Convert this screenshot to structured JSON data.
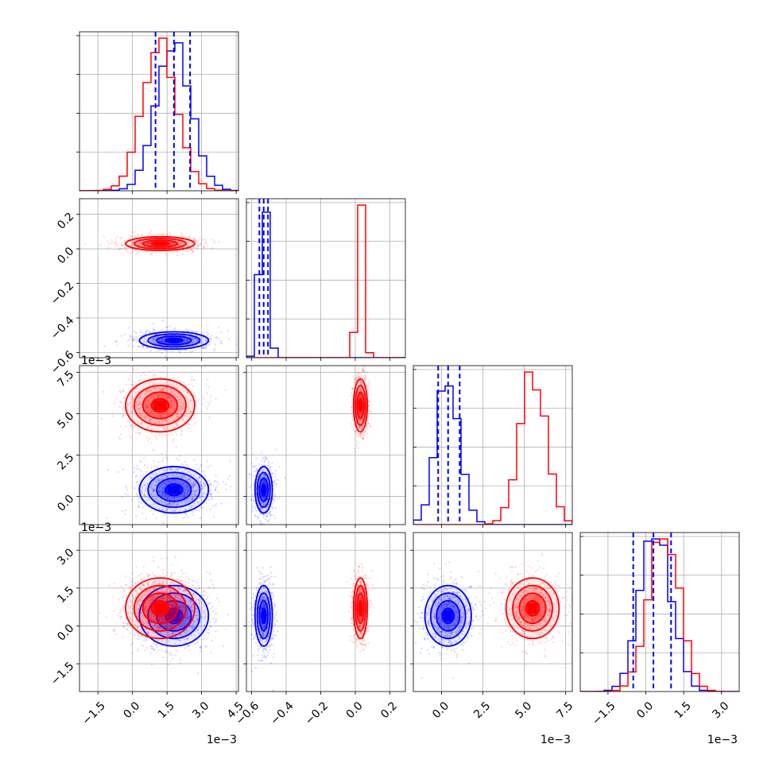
{
  "chart_data": {
    "type": "corner",
    "colors": {
      "series_a": "#0000ff",
      "series_b": "#ff0000"
    },
    "series": [
      {
        "color": "#0000ff",
        "means": [
          0.0018,
          -0.53,
          0.0004,
          0.0004
        ],
        "sds": [
          0.00075,
          0.025,
          0.0007,
          0.0006
        ],
        "quantiles": [
          [
            0.001,
            0.0018,
            0.0025
          ],
          [
            -0.555,
            -0.53,
            -0.505
          ],
          [
            -0.0002,
            0.0004,
            0.0011
          ],
          [
            -0.0005,
            0.0003,
            0.001
          ]
        ]
      },
      {
        "color": "#ff0000",
        "means": [
          0.0012,
          0.03,
          0.0055,
          0.0007
        ],
        "sds": [
          0.00075,
          0.02,
          0.0008,
          0.0006
        ]
      }
    ],
    "params": [
      {
        "range": [
          -0.0023,
          0.0046
        ],
        "ticks": [
          -0.0015,
          0.0,
          0.0015,
          0.003,
          0.0045
        ],
        "tick_labels": [
          "−1.5",
          "0.0",
          "1.5",
          "3.0",
          "4.5"
        ],
        "offset_label": "1e−3"
      },
      {
        "range": [
          -0.63,
          0.29
        ],
        "ticks": [
          -0.6,
          -0.4,
          -0.2,
          0.0,
          0.2
        ],
        "tick_labels": [
          "−0.6",
          "−0.4",
          "−0.2",
          "0.0",
          "0.2"
        ],
        "offset_label": ""
      },
      {
        "range": [
          -0.0017,
          0.0079
        ],
        "ticks": [
          0.0,
          0.0025,
          0.005,
          0.0075
        ],
        "tick_labels": [
          "0.0",
          "2.5",
          "5.0",
          "7.5"
        ],
        "offset_label": "1e−3"
      },
      {
        "range": [
          -0.0026,
          0.0037
        ],
        "ticks": [
          -0.0015,
          0.0,
          0.0015,
          0.003
        ],
        "tick_labels": [
          "−1.5",
          "0.0",
          "1.5",
          "3.0"
        ],
        "offset_label": "1e−3"
      }
    ],
    "grid": true,
    "quantile_lines": "dashed, blue series only",
    "title": "",
    "xlabel": "",
    "ylabel": ""
  }
}
